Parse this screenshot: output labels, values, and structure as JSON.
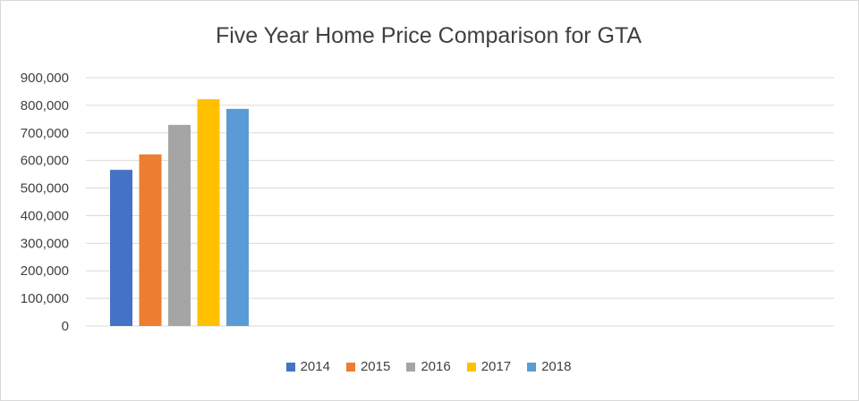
{
  "chart_data": {
    "type": "bar",
    "title": "Five Year Home Price Comparison for GTA",
    "xlabel": "",
    "ylabel": "",
    "ylim": [
      0,
      900000
    ],
    "yticks": [
      0,
      100000,
      200000,
      300000,
      400000,
      500000,
      600000,
      700000,
      800000,
      900000
    ],
    "ytick_labels": [
      "0",
      "100,000",
      "200,000",
      "300,000",
      "400,000",
      "500,000",
      "600,000",
      "700,000",
      "800,000",
      "900,000"
    ],
    "grid": true,
    "legend_position": "bottom",
    "series": [
      {
        "name": "2014",
        "values": [
          566000
        ],
        "color": "#4472C4"
      },
      {
        "name": "2015",
        "values": [
          622000
        ],
        "color": "#ED7D31"
      },
      {
        "name": "2016",
        "values": [
          729000
        ],
        "color": "#A5A5A5"
      },
      {
        "name": "2017",
        "values": [
          822000
        ],
        "color": "#FFC000"
      },
      {
        "name": "2018",
        "values": [
          787000
        ],
        "color": "#5B9BD5"
      }
    ]
  }
}
